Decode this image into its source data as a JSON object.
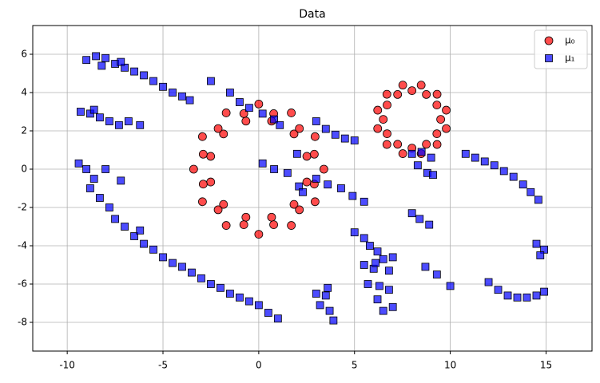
{
  "chart_data": {
    "type": "scatter",
    "title": "Data",
    "xlim": [
      -11.8,
      17.4
    ],
    "ylim": [
      -9.5,
      7.5
    ],
    "xticks": [
      -10,
      -5,
      0,
      5,
      10,
      15
    ],
    "yticks": [
      -8,
      -6,
      -4,
      -2,
      0,
      2,
      4,
      6
    ],
    "grid": true,
    "legend": "upper right",
    "series": [
      {
        "name": "μ₀",
        "color": "#ff0000",
        "marker": "circle",
        "x": [
          3.4,
          2.94,
          1.7,
          0,
          -1.7,
          -2.94,
          -3.4,
          -2.94,
          -1.7,
          0,
          1.7,
          2.94,
          2.51,
          1.84,
          0.67,
          -0.67,
          -1.84,
          -2.51,
          -2.51,
          -1.84,
          -0.67,
          0.67,
          1.84,
          2.51,
          2.9,
          2.12,
          0.78,
          -0.78,
          -2.12,
          -2.9,
          -2.9,
          -2.12,
          -0.78,
          0.78,
          2.12,
          2.9,
          9.5,
          9.3,
          8.75,
          8,
          7.25,
          6.7,
          6.5,
          6.7,
          7.25,
          8,
          8.75,
          9.3,
          9.79,
          9.31,
          8.48,
          7.52,
          6.69,
          6.21,
          6.21,
          6.69,
          7.52,
          8.48,
          9.31,
          9.79
        ],
        "values": [
          0,
          1.7,
          2.94,
          3.4,
          2.94,
          1.7,
          0,
          -1.7,
          -2.94,
          -3.4,
          -2.94,
          -1.7,
          0.67,
          1.84,
          2.51,
          2.51,
          1.84,
          0.67,
          -0.67,
          -1.84,
          -2.51,
          -2.51,
          -1.84,
          -0.67,
          0.78,
          2.12,
          2.9,
          2.9,
          2.12,
          0.78,
          -0.78,
          -2.12,
          -2.9,
          -2.9,
          -2.12,
          -0.78,
          2.6,
          3.35,
          3.9,
          4.1,
          3.9,
          3.35,
          2.6,
          1.85,
          1.3,
          1.1,
          1.3,
          1.85,
          3.08,
          3.91,
          4.39,
          4.39,
          3.91,
          3.08,
          2.12,
          1.29,
          0.81,
          0.81,
          1.29,
          2.12
        ]
      },
      {
        "name": "μ₁",
        "color": "#0000ff",
        "marker": "square",
        "x": [
          -9,
          -8.5,
          -8,
          -7.5,
          -7,
          -6.5,
          -6,
          -5.5,
          -5,
          -4.5,
          -4,
          -3.6,
          -8.2,
          -7.2,
          -9.3,
          -8.8,
          -8.3,
          -7.8,
          -7.3,
          -6.8,
          -6.2,
          -8.6,
          -9.4,
          -9,
          -8.6,
          -8.8,
          -8.3,
          -7.8,
          -7.5,
          -7,
          -6.5,
          -6,
          -5.5,
          -5,
          -4.5,
          -4,
          -3.5,
          -3,
          -2.5,
          -2,
          -1.5,
          -1,
          -0.5,
          0,
          0.5,
          1,
          -7.2,
          -8,
          -6.2,
          -2.5,
          -1.5,
          -1,
          -0.5,
          0.2,
          0.8,
          1.1,
          3,
          3.5,
          4,
          4.5,
          5,
          0.2,
          0.8,
          1.5,
          2.1,
          2.3,
          3,
          3.6,
          4.3,
          4.9,
          5.5,
          2,
          8,
          8.5,
          9,
          8.3,
          8.8,
          9.1,
          10.8,
          11.3,
          11.8,
          12.3,
          12.8,
          13.3,
          13.8,
          14.2,
          14.6,
          8,
          8.4,
          8.9,
          14.5,
          14.9,
          14.7,
          8.7,
          9.3,
          10,
          12,
          12.5,
          13,
          13.5,
          14,
          14.5,
          14.9,
          5,
          5.5,
          5.8,
          6.2,
          6.5,
          6.8,
          6,
          5.5,
          5.7,
          6.3,
          6.8,
          6.2,
          6.5,
          7,
          6.1,
          7,
          3,
          3.5,
          3.2,
          3.7,
          3.9,
          3.6
        ],
        "values": [
          5.7,
          5.9,
          5.8,
          5.5,
          5.3,
          5.1,
          4.9,
          4.6,
          4.3,
          4,
          3.8,
          3.6,
          5.4,
          5.6,
          3,
          2.9,
          2.7,
          2.5,
          2.3,
          2.5,
          2.3,
          3.1,
          0.3,
          0,
          -0.5,
          -1,
          -1.5,
          -2,
          -2.6,
          -3,
          -3.5,
          -3.9,
          -4.2,
          -4.6,
          -4.9,
          -5.1,
          -5.4,
          -5.7,
          -6,
          -6.2,
          -6.5,
          -6.7,
          -6.9,
          -7.1,
          -7.5,
          -7.8,
          -0.6,
          0,
          -3.2,
          4.6,
          4,
          3.5,
          3.2,
          2.9,
          2.6,
          2.3,
          2.5,
          2.1,
          1.8,
          1.6,
          1.5,
          0.3,
          0,
          -0.2,
          -0.9,
          -1.2,
          -0.5,
          -0.8,
          -1,
          -1.4,
          -1.7,
          0.8,
          0.8,
          0.9,
          0.6,
          0.2,
          -0.2,
          -0.3,
          0.8,
          0.6,
          0.4,
          0.2,
          -0.1,
          -0.4,
          -0.8,
          -1.2,
          -1.6,
          -2.3,
          -2.6,
          -2.9,
          -3.9,
          -4.2,
          -4.5,
          -5.1,
          -5.5,
          -6.1,
          -5.9,
          -6.3,
          -6.6,
          -6.7,
          -6.7,
          -6.6,
          -6.4,
          -3.3,
          -3.6,
          -4,
          -4.3,
          -4.7,
          -5.3,
          -5.2,
          -5,
          -6,
          -6.1,
          -6.3,
          -6.8,
          -7.4,
          -7.2,
          -4.9,
          -4.6,
          -6.5,
          -6.6,
          -7.1,
          -7.4,
          -7.9,
          -6.2
        ]
      }
    ]
  }
}
